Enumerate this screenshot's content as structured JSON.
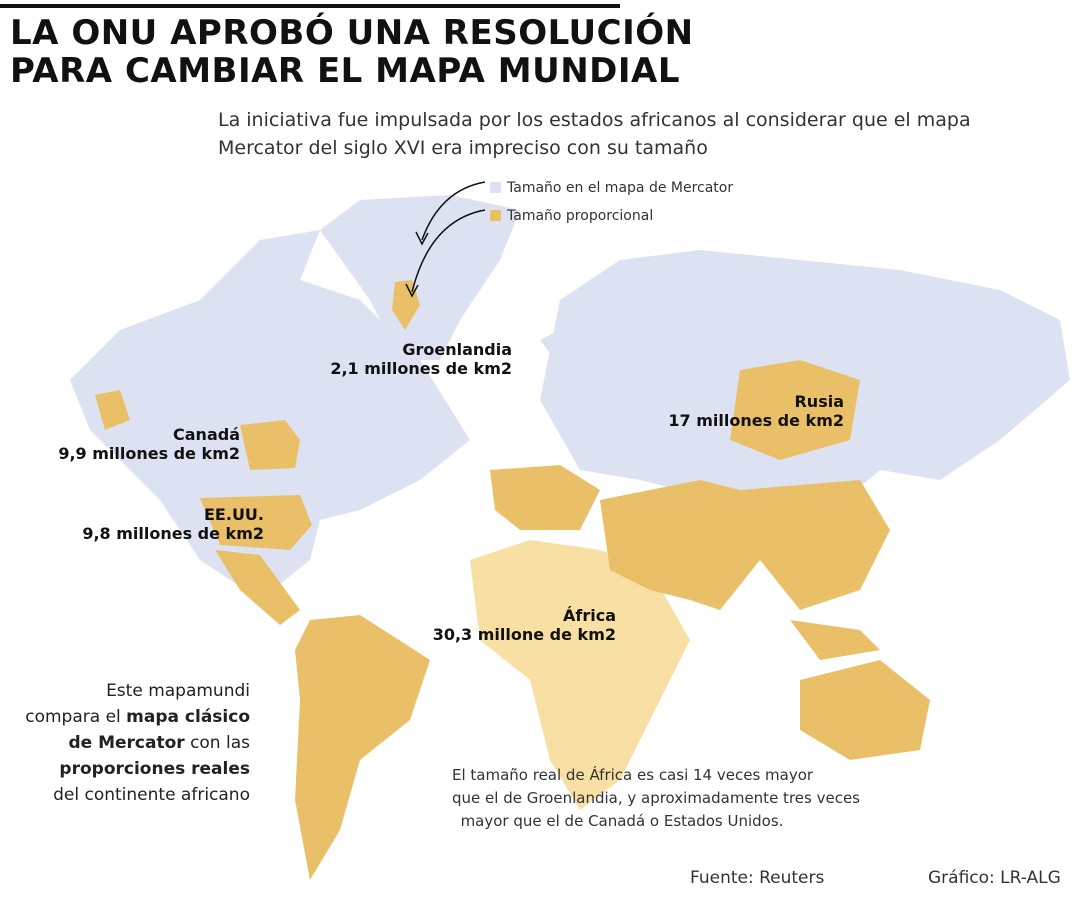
{
  "title": {
    "lines": [
      "LA ONU APROBÓ UNA RESOLUCIÓN",
      "PARA CAMBIAR EL MAPA MUNDIAL"
    ]
  },
  "subtitle": {
    "lines": [
      "La iniciativa fue impulsada por los estados africanos al considerar que el mapa",
      "Mercator del siglo XVI era impreciso con su tamaño"
    ]
  },
  "legend": [
    {
      "label": "Tamaño en el mapa de Mercator",
      "color": "#dde2f3"
    },
    {
      "label": "Tamaño proporcional",
      "color": "#e9c068"
    }
  ],
  "labels": [
    {
      "name": "Groenlandia",
      "size": "2,1 millones de km2"
    },
    {
      "name": "Canadá",
      "size": "9,9 millones de km2"
    },
    {
      "name": "EE.UU.",
      "size": "9,8 millones de km2"
    },
    {
      "name": "Rusia",
      "size": "17 millones de km2"
    },
    {
      "name": "África",
      "size": "30,3 millone de km2"
    }
  ],
  "side_note": {
    "lines": [
      [
        {
          "text": "Este mapamundi",
          "bold": false
        }
      ],
      [
        {
          "text": "compara el",
          "bold": false
        },
        {
          "text": "mapa clásico",
          "bold": true
        }
      ],
      [
        {
          "text": "de Mercator",
          "bold": true
        },
        {
          "text": "con las",
          "bold": false
        }
      ],
      [
        {
          "text": "proporciones reales",
          "bold": true
        }
      ],
      [
        {
          "text": "del continente africano",
          "bold": false
        }
      ]
    ]
  },
  "footnote": {
    "lines": [
      "El tamaño real de África es casi 14 veces mayor",
      "que el de Groenlandia, y aproximadamente tres veces",
      "mayor que el de Canadá o Estados Unidos."
    ]
  },
  "source": "Fuente: Reuters",
  "credit": "Gráfico: LR-ALG"
}
